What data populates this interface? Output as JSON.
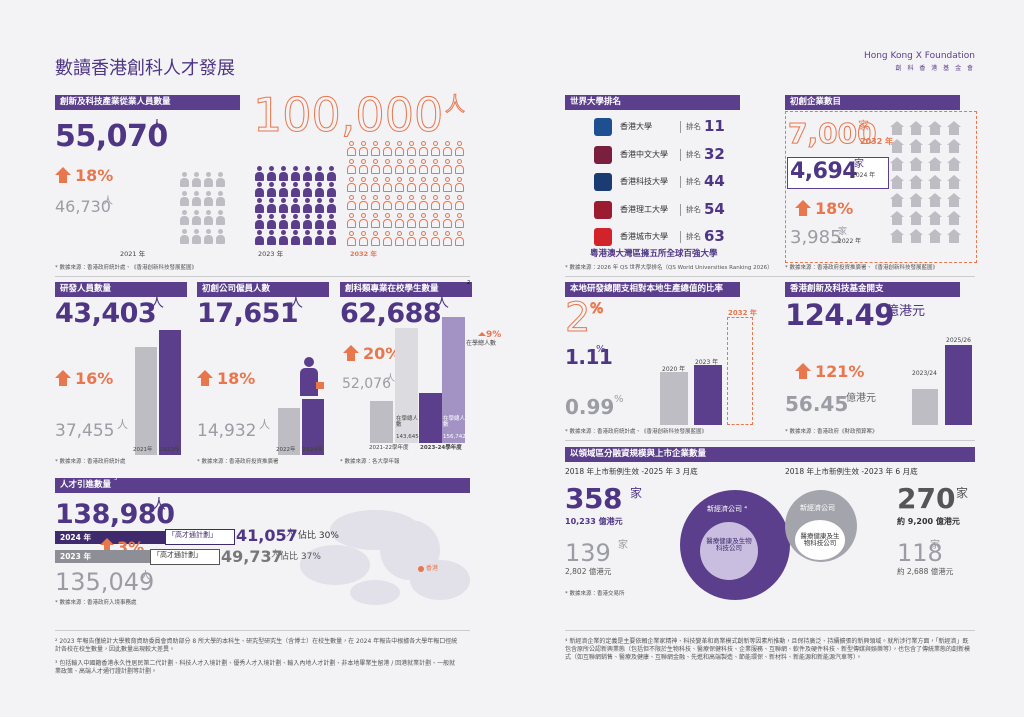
{
  "title": "數讀香港創科人才發展",
  "brand": {
    "name": "Hong Kong X Foundation",
    "sub": "創 科 香 港 基 金 會"
  },
  "workforce": {
    "heading": "創新及科技產業從業人員數量",
    "current": "55,070",
    "unit": "人",
    "growth": "18%",
    "previous": "46,730",
    "previous_unit": "人",
    "target": "100,000",
    "target_unit": "人",
    "years": [
      "2021 年",
      "2023 年",
      "2032 年"
    ],
    "source": "* 數據來源：香港政府統計處、《香港創新科技發展藍圖》"
  },
  "rd": {
    "heading": "研發人員數量",
    "current": "43,403",
    "unit": "人",
    "growth": "16%",
    "previous": "37,455",
    "previous_unit": "人",
    "years": [
      "2021年",
      "2023年"
    ],
    "source": "* 數據來源：香港政府統計處"
  },
  "startup_staff": {
    "heading": "初創公司僱員人數",
    "current": "17,651",
    "unit": "人",
    "growth": "18%",
    "previous": "14,932",
    "previous_unit": "人",
    "years": [
      "2022年",
      "2024年"
    ],
    "source": "* 數據來源：香港政府投資推廣署"
  },
  "students": {
    "heading": "創科類專業在校學生數量",
    "note_mark": "2",
    "current": "62,688",
    "unit": "人",
    "growth": "20%",
    "previous": "52,076",
    "previous_unit": "人",
    "share_growth": "9%",
    "share_label": "在學總人數",
    "years": [
      "2021-22學年度",
      "2023-24學年度"
    ],
    "totals": [
      {
        "label": "在學總人數",
        "value": "143,645"
      },
      {
        "label": "在學總人數",
        "value": "156,742"
      }
    ],
    "source": "* 數據來源：各大學年報"
  },
  "talent": {
    "heading": "人才引進數量",
    "note_mark": "3",
    "current": "138,980",
    "unit": "人",
    "growth": "3%",
    "previous": "135,049",
    "previous_unit": "人",
    "rows": [
      {
        "year": "2024 年",
        "scheme": "「高才通計劃」",
        "value": "41,057",
        "unit": "人",
        "share": "佔比 30%"
      },
      {
        "year": "2023 年",
        "scheme": "「高才通計劃」",
        "value": "49,737",
        "unit": "人",
        "share": "佔比 37%"
      }
    ],
    "map_label": "香港",
    "source": "* 數據來源：香港政府入境事務處"
  },
  "footnotes": [
    "² 2023 年報告僅統計大學教育資助委員會資助部分 8 所大學的本科生、研究型研究生（含博士）在校生數量，在 2024 年報告中根據各大學年報口徑統計各校在校生數量，因此數量出現較大差異。",
    "³ 包括輸入中國籍香港永久性居民第二代計劃、科技人才入境計劃、優秀人才入境計劃、輸入內地人才計劃、非本地畢業生留港 / 回港就業計劃、一般就業政策、高端人才通行證計劃等計劃。",
    "⁴ 新經濟企業的定義是主要依賴企業家精神、科技變革和商業模式創新等因素所推動，且保持廣泛、持續擴張的新興領域。就所涉行業方面，「新經濟」既包含原所公認新興業態（包括但不限於生物科技、醫療保健科技、企業服務、互聯網、軟件及硬件科技、新型傳媒與娛樂等），也包含了傳統業態的創新模式（如互聯網銷售、醫療及健康、互聯網金融、先進和高端製造、節能環保、新材料、新能源和新能源汽車等）。"
  ],
  "rankings": {
    "heading": "世界大學排名",
    "prefix": "排名",
    "universities": [
      {
        "name": "香港大學",
        "rank": "11"
      },
      {
        "name": "香港中文大學",
        "rank": "32"
      },
      {
        "name": "香港科技大學",
        "rank": "44"
      },
      {
        "name": "香港理工大學",
        "rank": "54"
      },
      {
        "name": "香港城市大學",
        "rank": "63"
      }
    ],
    "summary": "粵港澳大灣區擁五所全球百強大學",
    "source": "* 數據來源：2026 年 QS 世界大學排名（QS World Universities Ranking 2026）"
  },
  "startups": {
    "heading": "初創企業數目",
    "target": "7,000",
    "target_unit": "家",
    "target_year": "2032 年",
    "current": "4,694",
    "current_unit": "家",
    "current_year": "2024 年",
    "growth": "18%",
    "previous": "3,985",
    "previous_unit": "家",
    "previous_year": "2022 年",
    "source": "* 數據來源：香港政府投資推廣署、《香港創新科技發展藍圖》"
  },
  "gerd": {
    "heading": "本地研發總開支相對本地生產總值的比率",
    "target": "2",
    "target_unit": "%",
    "target_year": "2032 年",
    "current": "1.11",
    "current_unit": "%",
    "current_year": "2023 年",
    "previous": "0.99",
    "previous_unit": "%",
    "previous_year": "2020 年",
    "source": "* 數據來源：香港政府統計處、《香港創新科技發展藍圖》"
  },
  "fund": {
    "heading": "香港創新及科技基金開支",
    "current": "124.49",
    "unit": "億港元",
    "current_year": "2025/26",
    "growth": "121%",
    "previous": "56.45",
    "previous_unit": "億港元",
    "previous_year": "2023/24",
    "source": "* 數據來源：香港政府《財政預算案》"
  },
  "listings": {
    "heading": "以領域區分融資規模與上市企業數量",
    "left": {
      "caption": "2018 年上市新例生效 -2025 年 3 月底",
      "count": "358",
      "count_unit": "家",
      "amount": "10,233 億港元",
      "sub_count": "139",
      "sub_unit": "家",
      "sub_amount": "2,802 億港元",
      "outer_label": "新經濟公司 ⁴",
      "inner_label": "醫療健康及生物科技公司"
    },
    "right": {
      "caption": "2018 年上市新例生效 -2023 年 6 月底",
      "count": "270",
      "count_unit": "家",
      "amount": "約 9,200 億港元",
      "sub_count": "118",
      "sub_unit": "家",
      "sub_amount": "約 2,688 億港元",
      "outer_label": "新經濟公司",
      "inner_label": "醫療健康及生物科技公司"
    },
    "source": "* 數據來源：香港交易所"
  }
}
